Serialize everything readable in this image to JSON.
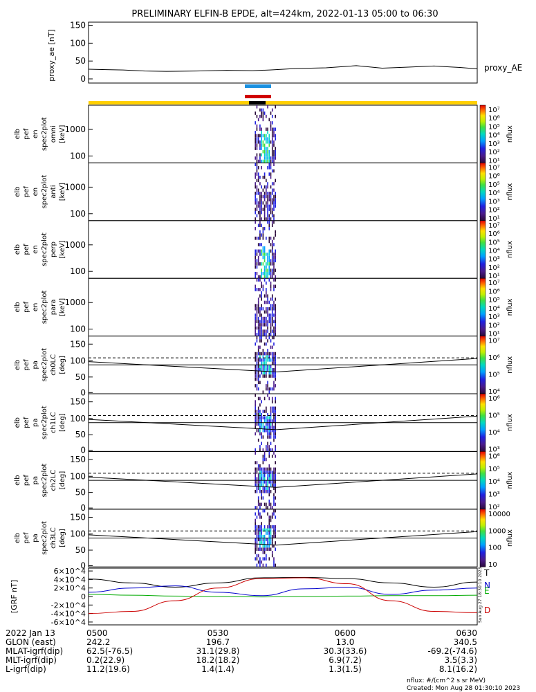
{
  "title": "PRELIMINARY ELFIN-B EPDE, alt=424km, 2022-01-13 05:00 to 06:30",
  "created": "Created: Mon Aug 28 01:30:10 2023",
  "units": "nflux: #/(cm^2 s sr MeV)",
  "side_stamp": "Sun Aug 27 18:30:10 2023",
  "panels": [
    {
      "ylabel": [
        "elb",
        "pef",
        "en",
        "spec2plot",
        "omni",
        "[keV]"
      ],
      "zlabel": "nflux"
    },
    {
      "ylabel": [
        "elb",
        "pef",
        "en",
        "spec2plot",
        "anti",
        "[keV]"
      ],
      "zlabel": "nflux"
    },
    {
      "ylabel": [
        "elb",
        "pef",
        "en",
        "spec2plot",
        "perp",
        "[keV]"
      ],
      "zlabel": "nflux"
    },
    {
      "ylabel": [
        "elb",
        "pef",
        "en",
        "spec2plot",
        "para",
        "[keV]"
      ],
      "zlabel": "nflux"
    },
    {
      "ylabel": [
        "elb",
        "pef",
        "pa",
        "spec2plot",
        "ch0LC",
        "[deg]"
      ],
      "zlabel": "nflux"
    },
    {
      "ylabel": [
        "elb",
        "pef",
        "pa",
        "spec2plot",
        "ch1LC",
        "[deg]"
      ],
      "zlabel": "nflux"
    },
    {
      "ylabel": [
        "elb",
        "pef",
        "pa",
        "spec2plot",
        "ch2LC",
        "[deg]"
      ],
      "zlabel": "nflux"
    },
    {
      "ylabel": [
        "elb",
        "pef",
        "pa",
        "spec2plot",
        "ch3LC",
        "[deg]"
      ],
      "zlabel": "nflux"
    }
  ],
  "ephemeris": {
    "rows": [
      {
        "label": "2022 Jan 13",
        "values": [
          "0500",
          "0530",
          "0600",
          "0630"
        ]
      },
      {
        "label": "GLON (east)",
        "values": [
          "242.2",
          "196.7",
          "13.0",
          "340.5"
        ]
      },
      {
        "label": "MLAT-igrf(dip)",
        "values": [
          "62.5(-76.5)",
          "31.1(29.8)",
          "30.3(33.6)",
          "-69.2(-74.6)"
        ]
      },
      {
        "label": "MLT-igrf(dip)",
        "values": [
          "0.2(22.9)",
          "18.2(18.2)",
          "6.9(7.2)",
          "3.5(3.3)"
        ]
      },
      {
        "label": "L-igrf(dip)",
        "values": [
          "11.2(19.6)",
          "1.4(1.4)",
          "1.3(1.5)",
          "8.1(16.2)"
        ]
      }
    ]
  },
  "chart_data": [
    {
      "type": "line",
      "ylabel": "proxy_ae [nT]",
      "ylim": [
        0,
        150
      ],
      "yticks": [
        0,
        50,
        100,
        150
      ],
      "x_range_min": [
        0,
        90
      ],
      "series": [
        {
          "name": "proxy_AE",
          "color": "#000000",
          "x": [
            0,
            4,
            8,
            13,
            18,
            25,
            32,
            38,
            42,
            48,
            55,
            62,
            68,
            74,
            80,
            86,
            90
          ],
          "y": [
            27,
            26,
            25,
            22,
            21,
            22,
            24,
            23,
            25,
            29,
            31,
            37,
            30,
            33,
            36,
            32,
            28
          ]
        }
      ]
    },
    {
      "type": "heatmap",
      "name": "energy spectrograms (omni, anti, perp, para)",
      "ylabel": "[keV]",
      "yscale": "log",
      "yticks": [
        100,
        1000
      ],
      "colorbar": {
        "range": [
          10.0,
          10000000.0
        ],
        "ticks": [
          "10^1",
          "10^2",
          "10^3",
          "10^4",
          "10^5",
          "10^6",
          "10^7"
        ]
      },
      "active_interval_min": [
        38.5,
        43.5
      ]
    },
    {
      "type": "heatmap",
      "name": "pitch angle spectrograms (ch0LC..ch3LC)",
      "ylabel": "[deg]",
      "ylim": [
        0,
        180
      ],
      "yticks": [
        0,
        50,
        100,
        150
      ],
      "colorbars": [
        {
          "ticks": [
            "10^4",
            "10^5",
            "10^6",
            "10^7"
          ]
        },
        {
          "ticks": [
            "10^3",
            "10^4",
            "10^5",
            "10^6"
          ]
        },
        {
          "ticks": [
            "10^2",
            "10^3",
            "10^4",
            "10^5",
            "10^6"
          ]
        },
        {
          "ticks": [
            "10",
            "100",
            "1000",
            "10000"
          ]
        }
      ],
      "active_interval_min": [
        38.5,
        43.5
      ]
    },
    {
      "type": "line",
      "ylabel": "[GRF nT]",
      "ylim": [
        -60000,
        60000
      ],
      "yticks": [
        "-6×10^4",
        "-4×10^4",
        "-2×10^4",
        "0",
        "2×10^4",
        "4×10^4",
        "6×10^4"
      ],
      "series": [
        {
          "name": "T",
          "color": "#000000",
          "x": [
            0,
            10,
            20,
            30,
            40,
            50,
            60,
            70,
            80,
            90
          ],
          "y": [
            41000,
            32000,
            22000,
            32000,
            44000,
            45000,
            42000,
            32000,
            22000,
            34000
          ]
        },
        {
          "name": "N",
          "color": "#0000cc",
          "x": [
            0,
            10,
            20,
            30,
            40,
            50,
            60,
            70,
            80,
            90
          ],
          "y": [
            10000,
            20000,
            25000,
            10000,
            2000,
            18000,
            22000,
            5000,
            15000,
            20000
          ]
        },
        {
          "name": "E",
          "color": "#00aa00",
          "x": [
            0,
            10,
            20,
            30,
            40,
            50,
            60,
            70,
            80,
            90
          ],
          "y": [
            5000,
            3000,
            1000,
            0,
            -1000,
            0,
            1000,
            2000,
            2000,
            3000
          ]
        },
        {
          "name": "D",
          "color": "#cc0000",
          "x": [
            0,
            10,
            20,
            30,
            40,
            50,
            60,
            70,
            80,
            90
          ],
          "y": [
            -40000,
            -35000,
            -10000,
            20000,
            42000,
            44000,
            30000,
            -10000,
            -35000,
            -38000
          ]
        }
      ]
    }
  ]
}
